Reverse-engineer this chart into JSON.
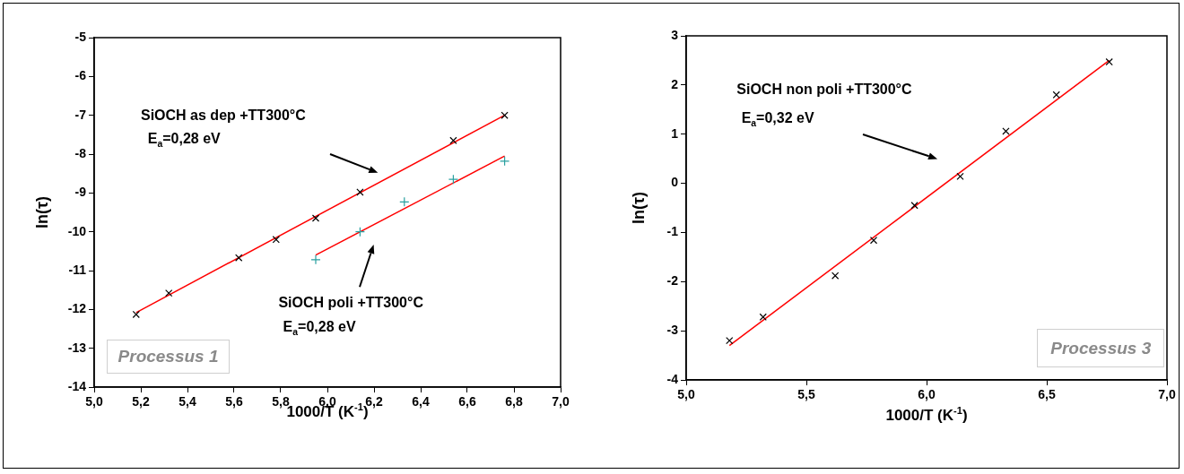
{
  "chart_data": [
    {
      "type": "scatter",
      "xlabel": "1000/T (K$^{-1}$)",
      "ylabel": "ln(τ)",
      "xlim": [
        5.0,
        7.0
      ],
      "ylim": [
        -14,
        -5
      ],
      "xticks": [
        {
          "value": 5.0,
          "label": "5,0"
        },
        {
          "value": 5.2,
          "label": "5,2"
        },
        {
          "value": 5.4,
          "label": "5,4"
        },
        {
          "value": 5.6,
          "label": "5,6"
        },
        {
          "value": 5.8,
          "label": "5,8"
        },
        {
          "value": 6.0,
          "label": "6,0"
        },
        {
          "value": 6.2,
          "label": "6,2"
        },
        {
          "value": 6.4,
          "label": "6,4"
        },
        {
          "value": 6.6,
          "label": "6,6"
        },
        {
          "value": 6.8,
          "label": "6,8"
        },
        {
          "value": 7.0,
          "label": "7,0"
        }
      ],
      "yticks": [
        -14,
        -13,
        -12,
        -11,
        -10,
        -9,
        -8,
        -7,
        -6,
        -5
      ],
      "grid": false,
      "legend": false,
      "annotations": [
        "SiOCH as dep +TT300°C",
        "E$_{a}$=0,28 eV",
        "SiOCH poli +TT300°C",
        "E$_{a}$=0,28 eV",
        "Processus 1"
      ],
      "series": [
        {
          "type": "scatter",
          "color": "#000000",
          "marker": "cross",
          "x": [
            5.18,
            5.32,
            5.62,
            5.78,
            5.95,
            6.14,
            6.54,
            6.76
          ],
          "values": [
            -12.13,
            -11.58,
            -10.67,
            -10.2,
            -9.65,
            -8.98,
            -7.65,
            -7.0
          ]
        },
        {
          "type": "scatter",
          "color": "#2aa0a0",
          "marker": "plus",
          "x": [
            5.95,
            6.14,
            6.33,
            6.54,
            6.76
          ],
          "values": [
            -10.72,
            -10.0,
            -9.23,
            -8.65,
            -8.18
          ]
        },
        {
          "type": "line",
          "color": "#ff0000",
          "marker": "none",
          "x": [
            5.18,
            6.76
          ],
          "values": [
            -12.08,
            -7.0
          ]
        },
        {
          "type": "line",
          "color": "#ff0000",
          "marker": "none",
          "x": [
            5.95,
            6.76
          ],
          "values": [
            -10.6,
            -8.05
          ]
        }
      ]
    },
    {
      "type": "scatter",
      "xlabel": "1000/T (K$^{-1}$)",
      "ylabel": "ln(τ)",
      "xlim": [
        5.0,
        7.0
      ],
      "ylim": [
        -4,
        3
      ],
      "xticks": [
        {
          "value": 5.0,
          "label": "5,0"
        },
        {
          "value": 5.5,
          "label": "5,5"
        },
        {
          "value": 6.0,
          "label": "6,0"
        },
        {
          "value": 6.5,
          "label": "6,5"
        },
        {
          "value": 7.0,
          "label": "7,0"
        }
      ],
      "yticks": [
        -4,
        -3,
        -2,
        -1,
        0,
        1,
        2,
        3
      ],
      "grid": false,
      "legend": false,
      "annotations": [
        "SiOCH non poli +TT300°C",
        "E$_{a}$=0,32 eV",
        "Processus 3"
      ],
      "series": [
        {
          "type": "scatter",
          "color": "#000000",
          "marker": "cross",
          "x": [
            5.18,
            5.32,
            5.62,
            5.78,
            5.95,
            6.14,
            6.33,
            6.54,
            6.76
          ],
          "values": [
            -3.2,
            -2.72,
            -1.88,
            -1.16,
            -0.45,
            0.14,
            1.06,
            1.8,
            2.47
          ]
        },
        {
          "type": "line",
          "color": "#ff0000",
          "marker": "none",
          "x": [
            5.18,
            6.76
          ],
          "values": [
            -3.3,
            2.5
          ]
        }
      ]
    }
  ]
}
